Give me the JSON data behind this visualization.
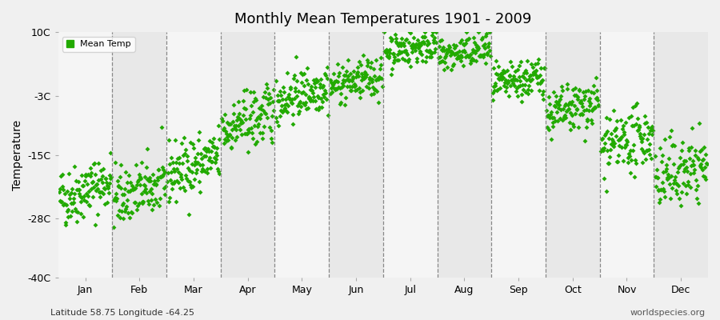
{
  "title": "Monthly Mean Temperatures 1901 - 2009",
  "ylabel": "Temperature",
  "subtitle_left": "Latitude 58.75 Longitude -64.25",
  "subtitle_right": "worldspecies.org",
  "legend_label": "Mean Temp",
  "ylim": [
    -40,
    10
  ],
  "yticks": [
    -40,
    -28,
    -15,
    -3,
    10
  ],
  "ytick_labels": [
    "-40C",
    "-28C",
    "-15C",
    "-3C",
    "10C"
  ],
  "months": [
    "Jan",
    "Feb",
    "Mar",
    "Apr",
    "May",
    "Jun",
    "Jul",
    "Aug",
    "Sep",
    "Oct",
    "Nov",
    "Dec"
  ],
  "dot_color": "#22aa00",
  "background_color": "#f0f0f0",
  "band_colors": [
    "#f5f5f5",
    "#e8e8e8"
  ],
  "n_years": 109,
  "monthly_means": [
    -24,
    -24,
    -19,
    -10,
    -4,
    -1,
    6,
    5,
    -1,
    -7,
    -14,
    -20
  ],
  "monthly_stds": [
    3.0,
    3.0,
    3.0,
    3.0,
    2.5,
    2.0,
    1.8,
    1.8,
    2.0,
    2.5,
    3.0,
    3.5
  ],
  "monthly_trends": [
    0.035,
    0.03,
    0.035,
    0.035,
    0.03,
    0.02,
    0.015,
    0.015,
    0.02,
    0.025,
    0.03,
    0.03
  ],
  "seed": 42,
  "start_year": 1901,
  "end_year": 2009
}
